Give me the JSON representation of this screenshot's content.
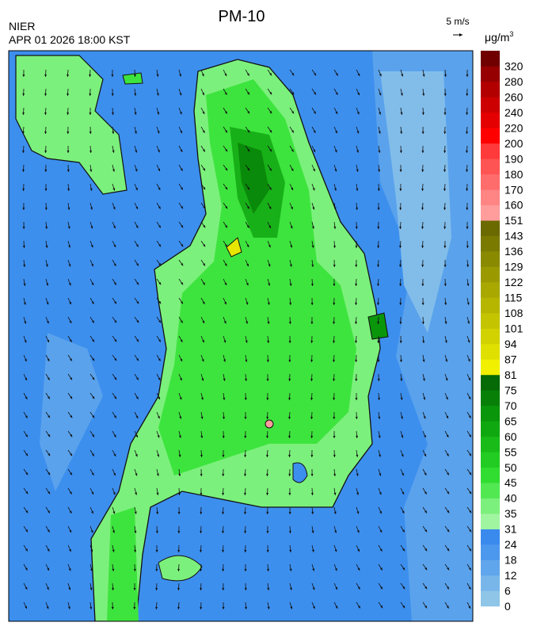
{
  "header": {
    "title": "PM-10",
    "agency": "NIER",
    "timestamp": "APR 01 2026 18:00 KST",
    "wind_scale": "5 m/s"
  },
  "colorbar": {
    "unit": "μg/m",
    "unit_exponent": "3",
    "ticks": [
      0,
      6,
      12,
      18,
      24,
      31,
      35,
      40,
      45,
      50,
      55,
      60,
      65,
      70,
      75,
      81,
      87,
      94,
      101,
      108,
      115,
      122,
      129,
      136,
      143,
      151,
      160,
      170,
      180,
      190,
      200,
      220,
      240,
      260,
      280,
      320
    ],
    "colors": [
      "#8fc6e8",
      "#78b6ea",
      "#60a6ec",
      "#4c98ee",
      "#3a8aee",
      "#a0f5a0",
      "#7cf07c",
      "#52e852",
      "#30dd30",
      "#22cc22",
      "#18bb18",
      "#10a810",
      "#0a960a",
      "#088008",
      "#066a06",
      "#f0f000",
      "#e0e000",
      "#d2d200",
      "#c4c400",
      "#b6b600",
      "#a8a800",
      "#9a9a00",
      "#8a8a00",
      "#7a7a00",
      "#6a6a00",
      "#ff9c9c",
      "#ff8484",
      "#ff6c6c",
      "#ff5454",
      "#ff3a3a",
      "#ff0000",
      "#e40000",
      "#cc0000",
      "#b20000",
      "#960000",
      "#700000"
    ]
  }
}
